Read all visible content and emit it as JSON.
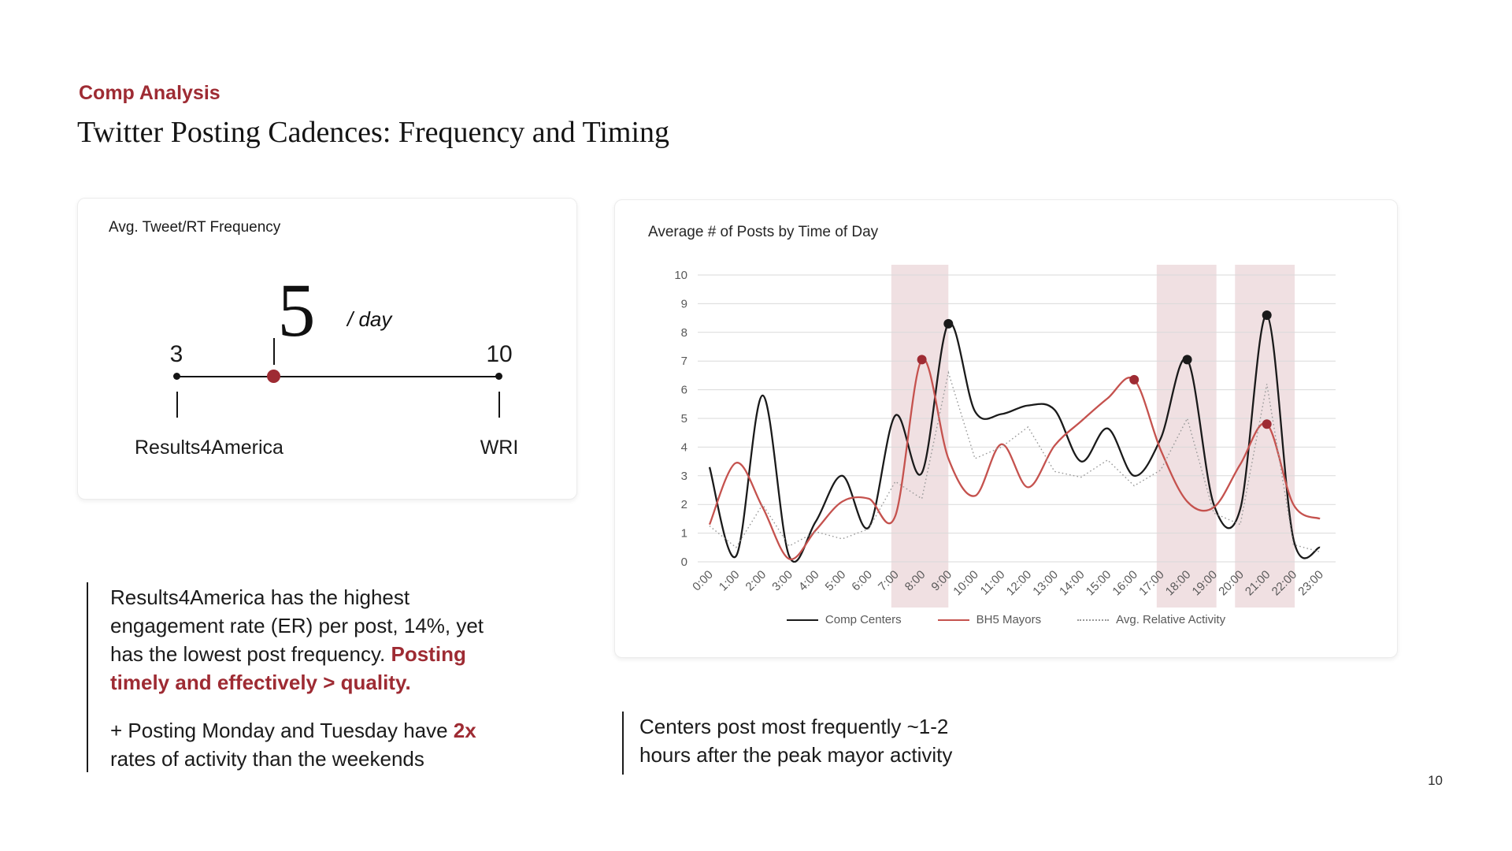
{
  "header": {
    "eyebrow": "Comp Analysis",
    "title": "Twitter Posting Cadences: Frequency and Timing"
  },
  "freq_card": {
    "label": "Avg. Tweet/RT Frequency",
    "value": "5",
    "unit": "/ day",
    "min": "3",
    "max": "10",
    "min_label": "Results4America",
    "max_label": "WRI",
    "accent_color": "#9e2b33"
  },
  "chart_data": {
    "type": "line",
    "title": "Average # of Posts by Time of Day",
    "x": [
      "0:00",
      "1:00",
      "2:00",
      "3:00",
      "4:00",
      "5:00",
      "6:00",
      "7:00",
      "8:00",
      "9:00",
      "10:00",
      "11:00",
      "12:00",
      "13:00",
      "14:00",
      "15:00",
      "16:00",
      "17:00",
      "18:00",
      "19:00",
      "20:00",
      "21:00",
      "22:00",
      "23:00"
    ],
    "ylim": [
      0,
      10
    ],
    "yticks": [
      0,
      1,
      2,
      3,
      4,
      5,
      6,
      7,
      8,
      9,
      10
    ],
    "grid": true,
    "legend_position": "bottom",
    "band_color": "#f0e0e2",
    "grid_color": "#d9d9d9",
    "highlight_bands": [
      {
        "from": 6.85,
        "to": 9.0
      },
      {
        "from": 16.85,
        "to": 19.1
      },
      {
        "from": 19.8,
        "to": 22.05
      }
    ],
    "series": [
      {
        "name": "Comp Centers",
        "color": "#1a1a1a",
        "style": "solid",
        "smooth": true,
        "values": [
          3.3,
          0.2,
          5.8,
          0.2,
          1.4,
          3.0,
          1.2,
          5.1,
          3.1,
          8.3,
          5.25,
          5.15,
          5.45,
          5.3,
          3.5,
          4.65,
          3.0,
          4.3,
          7.05,
          2.0,
          1.85,
          8.6,
          0.8,
          0.5
        ],
        "marker_color": "#1a1a1a",
        "markers": [
          {
            "x": 9,
            "y": 8.3
          },
          {
            "x": 18,
            "y": 7.05
          },
          {
            "x": 21,
            "y": 8.6
          }
        ]
      },
      {
        "name": "BH5 Mayors",
        "color": "#c5524e",
        "style": "solid",
        "smooth": true,
        "values": [
          1.3,
          3.45,
          1.9,
          0.1,
          1.1,
          2.1,
          2.2,
          1.6,
          7.05,
          3.6,
          2.3,
          4.1,
          2.6,
          4.05,
          4.9,
          5.7,
          6.35,
          3.9,
          2.1,
          1.9,
          3.4,
          4.8,
          2.0,
          1.5
        ],
        "marker_color": "#9e2b33",
        "markers": [
          {
            "x": 8,
            "y": 7.05
          },
          {
            "x": 16,
            "y": 6.35
          },
          {
            "x": 21,
            "y": 4.8
          }
        ]
      },
      {
        "name": "Avg. Relative Activity",
        "color": "#999999",
        "style": "dotted",
        "smooth": false,
        "values": [
          1.25,
          0.5,
          2.0,
          0.55,
          1.05,
          0.8,
          1.15,
          2.8,
          2.2,
          6.6,
          3.6,
          4.0,
          4.7,
          3.15,
          2.95,
          3.55,
          2.65,
          3.2,
          5.0,
          1.7,
          1.3,
          6.2,
          0.6,
          0.35
        ]
      }
    ]
  },
  "notes": {
    "left1_black": "Results4America has the highest\nengagement rate (ER) per post, 14%, yet\nhas the lowest post frequency. ",
    "left1_red": "Posting\ntimely and effectively > quality.",
    "left2_pre": "+ Posting Monday and Tuesday have ",
    "left2_red": "2x",
    "left2_post": "\nrates of activity than the weekends",
    "right": "Centers post most frequently ~1-2\nhours after the peak mayor activity"
  },
  "footer": {
    "page_number": "10"
  }
}
